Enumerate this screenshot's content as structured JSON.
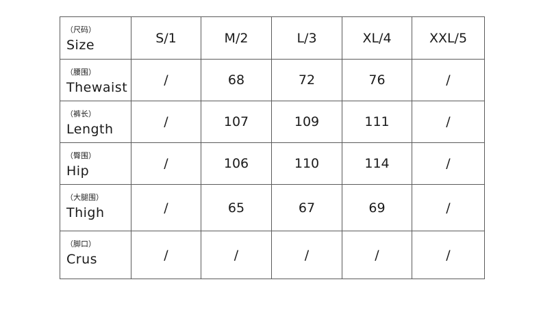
{
  "header": {
    "label_cn": "（尺码）",
    "label_en": "Size",
    "sizes": [
      "S/1",
      "M/2",
      "L/3",
      "XL/4",
      "XXL/5"
    ]
  },
  "rows": [
    {
      "label_cn": "（腰围）",
      "label_en": "Thewaist",
      "values": [
        "/",
        "68",
        "72",
        "76",
        "/"
      ]
    },
    {
      "label_cn": "（裤长）",
      "label_en": "Length",
      "values": [
        "/",
        "107",
        "109",
        "111",
        "/"
      ]
    },
    {
      "label_cn": "（臀围）",
      "label_en": "Hip",
      "values": [
        "/",
        "106",
        "110",
        "114",
        "/"
      ]
    },
    {
      "label_cn": "（大腿围）",
      "label_en": "Thigh",
      "values": [
        "/",
        "65",
        "67",
        "69",
        "/"
      ]
    },
    {
      "label_cn": "（脚口）",
      "label_en": "Crus",
      "values": [
        "/",
        "/",
        "/",
        "/",
        "/"
      ]
    }
  ]
}
